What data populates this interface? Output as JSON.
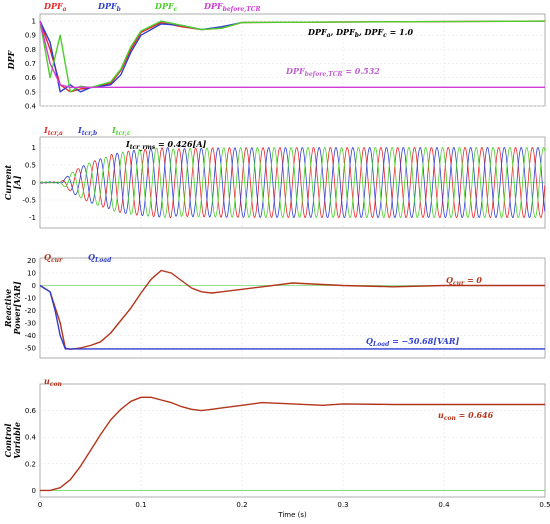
{
  "chart_data": [
    {
      "type": "line",
      "ylabel": "DPF",
      "ylim": [
        0.4,
        1.05
      ],
      "yticks": [
        "1",
        "0.9",
        "0.8",
        "0.7",
        "0.6",
        "0.5",
        "0.4"
      ],
      "xlim": [
        0,
        0.5
      ],
      "grid": true,
      "legend": [
        {
          "text": "DPF",
          "sub": "a",
          "color": "#e8262a"
        },
        {
          "text": "DPF",
          "sub": "b",
          "color": "#2f3fd0"
        },
        {
          "text": "DPF",
          "sub": "c",
          "color": "#4ccf2c"
        },
        {
          "text": "DPF",
          "sub": "before,TCR",
          "color": "#d13bd6"
        }
      ],
      "annotations": [
        {
          "main": "DPF",
          "parts": [
            [
              "DPF",
              "a",
              ", "
            ],
            [
              "DPF",
              "b",
              ", "
            ],
            [
              "DPF",
              "c",
              " = 1.0"
            ]
          ],
          "color": "#000000"
        },
        {
          "main": "DPF",
          "sub": "before,TCR",
          "suffix": " = 0.532",
          "color": "#c060d0"
        }
      ],
      "series": [
        {
          "name": "DPF_a",
          "color": "#e8262a",
          "x": [
            0,
            0.01,
            0.02,
            0.03,
            0.04,
            0.05,
            0.07,
            0.08,
            0.09,
            0.1,
            0.12,
            0.14,
            0.16,
            0.18,
            0.2,
            0.5
          ],
          "y": [
            1.0,
            0.8,
            0.55,
            0.5,
            0.52,
            0.53,
            0.56,
            0.65,
            0.8,
            0.92,
            0.99,
            0.96,
            0.94,
            0.95,
            0.99,
            1.0
          ]
        },
        {
          "name": "DPF_b",
          "color": "#2f3fd0",
          "x": [
            0,
            0.01,
            0.02,
            0.03,
            0.04,
            0.05,
            0.07,
            0.08,
            0.09,
            0.1,
            0.12,
            0.14,
            0.16,
            0.18,
            0.2
          ],
          "y": [
            1.0,
            0.85,
            0.5,
            0.55,
            0.5,
            0.53,
            0.55,
            0.62,
            0.78,
            0.9,
            0.98,
            0.97,
            0.94,
            0.96,
            0.99
          ]
        },
        {
          "name": "DPF_c",
          "color": "#4ccf2c",
          "x": [
            0,
            0.01,
            0.02,
            0.03,
            0.04,
            0.05,
            0.07,
            0.08,
            0.09,
            0.1,
            0.12,
            0.14,
            0.16,
            0.18,
            0.2,
            0.5
          ],
          "y": [
            1.0,
            0.6,
            0.9,
            0.5,
            0.54,
            0.53,
            0.57,
            0.66,
            0.82,
            0.93,
            1.0,
            0.97,
            0.94,
            0.95,
            0.99,
            1.0
          ]
        },
        {
          "name": "DPF_before,TCR",
          "color": "#d13bd6",
          "x": [
            0,
            0.01,
            0.02,
            0.03,
            0.5
          ],
          "y": [
            1.0,
            0.7,
            0.55,
            0.532,
            0.532
          ]
        }
      ]
    },
    {
      "type": "line",
      "ylabel": "Current [A]",
      "ylim": [
        -1.3,
        1.3
      ],
      "yticks": [
        "1",
        "0.5",
        "0",
        "-0.5",
        "-1"
      ],
      "xlim": [
        0,
        0.5
      ],
      "grid": true,
      "legend": [
        {
          "text": "I",
          "sub": "tcr,a",
          "color": "#e8262a"
        },
        {
          "text": "I",
          "sub": "tcr,b",
          "color": "#2f3fd0"
        },
        {
          "text": "I",
          "sub": "tcr,c",
          "color": "#4ccf2c"
        }
      ],
      "annotations": [
        {
          "main": "I",
          "sub": "tcr_rms",
          "suffix": " = 0.426[A]",
          "color": "#000000"
        }
      ],
      "series": [
        {
          "name": "I_tcr,a",
          "color": "#e8262a",
          "frequency_hz": 60,
          "phase_deg": 0,
          "steady_amplitude": 1.0,
          "onset_time": 0.02
        },
        {
          "name": "I_tcr,b",
          "color": "#2f3fd0",
          "frequency_hz": 60,
          "phase_deg": -120,
          "steady_amplitude": 1.0,
          "onset_time": 0.02
        },
        {
          "name": "I_tcr,c",
          "color": "#4ccf2c",
          "frequency_hz": 60,
          "phase_deg": 120,
          "steady_amplitude": 1.0,
          "onset_time": 0.02
        }
      ]
    },
    {
      "type": "line",
      "ylabel": "Reactive Power[VAR]",
      "ylim": [
        -58,
        22
      ],
      "yticks": [
        "20",
        "10",
        "0",
        "-10",
        "-20",
        "-30",
        "-40",
        "-50"
      ],
      "xlim": [
        0,
        0.5
      ],
      "grid": true,
      "legend": [
        {
          "text": "Q",
          "sub": "cur",
          "color": "#b2341a"
        },
        {
          "text": "Q",
          "sub": "Load",
          "color": "#2f3fd0"
        }
      ],
      "annotations": [
        {
          "main": "Q",
          "sub": "cur",
          "suffix": " = 0",
          "color": "#b2341a"
        },
        {
          "main": "Q",
          "sub": "Load",
          "suffix": " = −50.68[VAR]",
          "color": "#2f3fd0"
        }
      ],
      "series": [
        {
          "name": "Q_cur",
          "color": "#b2341a",
          "x": [
            0,
            0.01,
            0.02,
            0.025,
            0.03,
            0.04,
            0.05,
            0.06,
            0.07,
            0.08,
            0.09,
            0.1,
            0.11,
            0.12,
            0.13,
            0.14,
            0.15,
            0.16,
            0.17,
            0.18,
            0.2,
            0.22,
            0.25,
            0.3,
            0.35,
            0.4,
            0.5
          ],
          "y": [
            0,
            -5,
            -30,
            -50,
            -51,
            -50,
            -48,
            -45,
            -38,
            -28,
            -18,
            -6,
            5,
            12,
            10,
            4,
            -2,
            -5,
            -6,
            -5,
            -3,
            -1,
            2,
            0,
            -1,
            0,
            0
          ]
        },
        {
          "name": "Q_Load",
          "color": "#2f3fd0",
          "x": [
            0,
            0.01,
            0.015,
            0.02,
            0.025,
            0.03,
            0.5
          ],
          "y": [
            0,
            -5,
            -20,
            -40,
            -50.68,
            -50.68,
            -50.68
          ]
        }
      ]
    },
    {
      "type": "line",
      "ylabel": "Control Variable",
      "ylim": [
        -0.05,
        0.8
      ],
      "yticks": [
        "0.6",
        "0.4",
        "0.2",
        "0"
      ],
      "xlim": [
        0,
        0.5
      ],
      "xticks": [
        "0",
        "0.1",
        "0.2",
        "0.3",
        "0.4",
        "0.5"
      ],
      "xlabel": "Time (s)",
      "grid": true,
      "legend": [
        {
          "text": "u",
          "sub": "con",
          "color": "#b2341a"
        }
      ],
      "annotations": [
        {
          "main": "u",
          "sub": "con",
          "suffix": " = 0.646",
          "color": "#b2341a"
        }
      ],
      "series": [
        {
          "name": "u_con",
          "color": "#b2341a",
          "x": [
            0,
            0.01,
            0.02,
            0.03,
            0.04,
            0.05,
            0.06,
            0.07,
            0.08,
            0.09,
            0.1,
            0.11,
            0.12,
            0.13,
            0.14,
            0.15,
            0.16,
            0.17,
            0.18,
            0.2,
            0.22,
            0.25,
            0.28,
            0.3,
            0.35,
            0.4,
            0.45,
            0.5
          ],
          "y": [
            0,
            0.0,
            0.02,
            0.08,
            0.18,
            0.3,
            0.42,
            0.53,
            0.61,
            0.67,
            0.7,
            0.7,
            0.68,
            0.66,
            0.63,
            0.61,
            0.6,
            0.61,
            0.62,
            0.64,
            0.66,
            0.65,
            0.64,
            0.65,
            0.646,
            0.646,
            0.646,
            0.646
          ]
        }
      ]
    }
  ]
}
